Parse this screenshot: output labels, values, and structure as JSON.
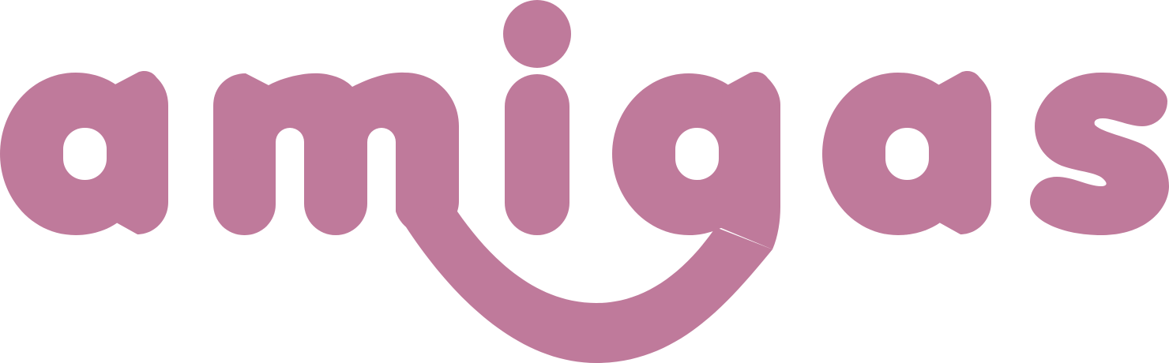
{
  "logo": {
    "text": "amigas",
    "color": "#BF7A9B",
    "background": "#FFFFFF"
  }
}
